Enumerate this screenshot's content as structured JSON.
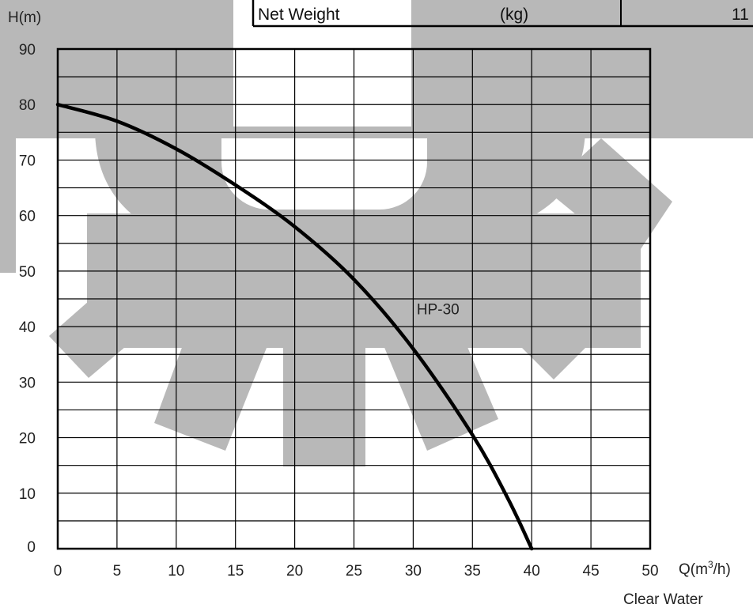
{
  "header_row": {
    "label": "Net Weight",
    "unit": "(kg)",
    "value": "11"
  },
  "colors": {
    "watermark": "#b8b8b8",
    "curve": "#000000",
    "grid": "#000000"
  },
  "chart_data": {
    "type": "line",
    "title": "",
    "ylabel": "H(m)",
    "xlabel_main": "Q(m",
    "xlabel_sup": "3",
    "xlabel_tail": "/h)",
    "note": "Clear Water",
    "xlim": [
      0,
      50
    ],
    "ylim": [
      0,
      90
    ],
    "x_ticks": [
      0,
      5,
      10,
      15,
      20,
      25,
      30,
      35,
      40,
      45,
      50
    ],
    "y_ticks": [
      0,
      10,
      20,
      30,
      40,
      50,
      60,
      70,
      80,
      90
    ],
    "grid": true,
    "series": [
      {
        "name": "HP-30",
        "x": [
          0,
          5,
          10,
          15,
          20,
          25,
          30,
          35,
          38,
          40
        ],
        "y": [
          80,
          77,
          72,
          65.5,
          58,
          48.5,
          36,
          20.5,
          9,
          0
        ]
      }
    ]
  }
}
